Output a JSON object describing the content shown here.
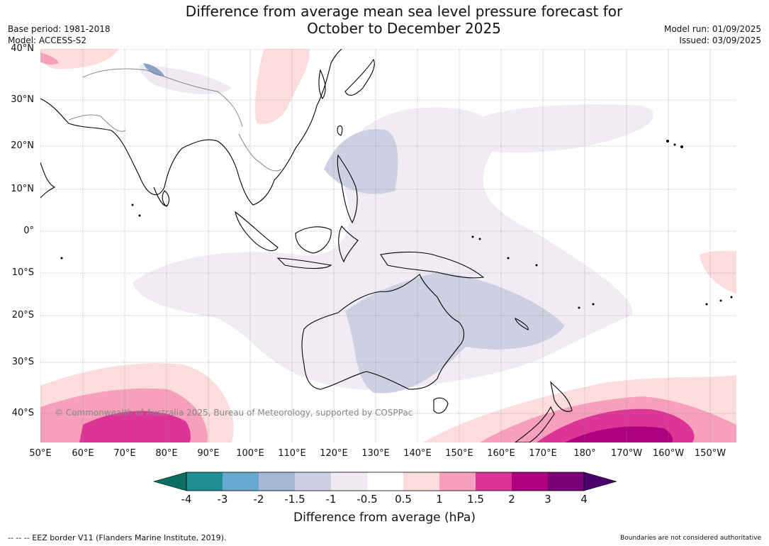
{
  "header": {
    "title_line1": "Difference from average mean sea level pressure forecast for",
    "title_line2": "October to December 2025",
    "base_period": "Base period: 1981-2018",
    "model": "Model: ACCESS-S2",
    "model_run": "Model run: 01/09/2025",
    "issued": "Issued: 03/09/2025"
  },
  "map": {
    "lat_labels": [
      "40°N",
      "30°N",
      "20°N",
      "10°N",
      "0°",
      "10°S",
      "20°S",
      "30°S",
      "40°S"
    ],
    "lon_labels": [
      "50°E",
      "60°E",
      "70°E",
      "80°E",
      "90°E",
      "100°E",
      "110°E",
      "120°E",
      "130°E",
      "140°E",
      "150°E",
      "160°E",
      "170°E",
      "180°",
      "170°W",
      "160°W",
      "150°W"
    ],
    "copyright": "© Commonwealth of Australia 2025, Bureau of Meteorology, supported by COSPPac"
  },
  "colorbar": {
    "title": "Difference from average (hPa)",
    "ticks": [
      "-4",
      "-3",
      "-2",
      "-1.5",
      "-1",
      "-0.5",
      "0.5",
      "1",
      "1.5",
      "2",
      "3",
      "4"
    ],
    "colors": [
      "#0b6f64",
      "#1f8f94",
      "#67a8d0",
      "#a7b6d3",
      "#cdd0e3",
      "#efeaf2",
      "#ffffff",
      "#fcdcdc",
      "#f6a0bb",
      "#dd3497",
      "#ae017e",
      "#7a0177",
      "#49006a"
    ]
  },
  "footer": {
    "eez": "--  --  -- EEZ border V11 (Flanders Marine Institute, 2019).",
    "boundaries": "Boundaries are not considered authoritative"
  }
}
